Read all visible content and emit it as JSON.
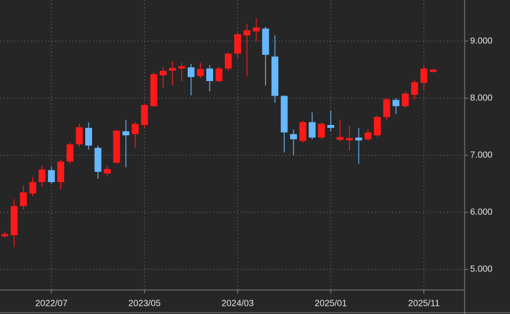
{
  "chart_data": {
    "type": "candlestick",
    "categories": [
      null,
      null,
      null,
      null,
      null,
      "2022/07",
      null,
      null,
      null,
      null,
      null,
      null,
      null,
      null,
      null,
      "2023/05",
      null,
      null,
      null,
      null,
      null,
      null,
      null,
      null,
      null,
      "2024/03",
      null,
      null,
      null,
      null,
      null,
      null,
      null,
      null,
      null,
      "2025/01",
      null,
      null,
      null,
      null,
      null,
      null,
      null,
      null,
      null,
      "2025/11",
      null
    ],
    "series": [
      {
        "open": [
          5.58,
          5.6,
          6.11,
          6.33,
          6.53,
          6.74,
          6.53,
          6.89,
          7.19,
          7.48,
          7.13,
          6.68,
          6.87,
          7.42,
          7.37,
          7.53,
          7.86,
          8.4,
          8.48,
          8.52,
          8.54,
          8.39,
          8.52,
          8.3,
          8.52,
          8.78,
          9.1,
          9.17,
          9.22,
          8.73,
          8.04,
          7.37,
          7.25,
          7.58,
          7.31,
          7.53,
          7.27,
          7.26,
          7.31,
          7.28,
          7.35,
          7.67,
          7.97,
          7.86,
          8.06,
          8.27,
          8.46
        ],
        "high": [
          5.66,
          6.23,
          6.47,
          6.62,
          6.82,
          6.8,
          6.92,
          7.22,
          7.55,
          7.58,
          7.17,
          6.82,
          7.45,
          7.62,
          7.58,
          7.9,
          8.45,
          8.55,
          8.65,
          8.62,
          8.6,
          8.62,
          8.58,
          8.55,
          8.8,
          9.15,
          9.3,
          9.4,
          9.25,
          9.1,
          8.05,
          7.45,
          7.6,
          7.75,
          7.58,
          7.78,
          7.62,
          7.52,
          7.48,
          7.45,
          7.7,
          8.0,
          8.0,
          8.12,
          8.32,
          8.58,
          8.52
        ],
        "low": [
          5.55,
          5.39,
          6.05,
          6.28,
          6.45,
          6.5,
          6.4,
          6.85,
          7.15,
          7.1,
          6.59,
          6.63,
          6.85,
          6.79,
          7.12,
          7.48,
          7.85,
          8.18,
          8.22,
          8.3,
          8.05,
          8.35,
          8.12,
          8.28,
          8.48,
          8.7,
          8.38,
          9.0,
          8.22,
          7.92,
          7.05,
          7.0,
          7.22,
          7.28,
          7.28,
          7.42,
          7.25,
          7.08,
          6.85,
          7.25,
          7.32,
          7.62,
          7.72,
          7.84,
          7.98,
          8.15,
          8.45
        ],
        "close": [
          5.62,
          6.11,
          6.35,
          6.53,
          6.75,
          6.53,
          6.89,
          7.19,
          7.49,
          7.17,
          6.71,
          6.76,
          7.43,
          7.35,
          7.55,
          7.88,
          8.42,
          8.48,
          8.53,
          8.56,
          8.37,
          8.51,
          8.3,
          8.52,
          8.78,
          9.12,
          9.19,
          9.24,
          8.76,
          8.04,
          7.4,
          7.28,
          7.58,
          7.31,
          7.55,
          7.48,
          7.32,
          7.3,
          7.26,
          7.4,
          7.67,
          7.98,
          7.86,
          8.08,
          8.28,
          8.52,
          8.5
        ]
      }
    ],
    "up_color": "#ff1a1a",
    "down_color": "#66b8ff",
    "ylim": [
      4.64,
      9.66
    ],
    "yticks": [
      {
        "value": 5,
        "label": "5.000"
      },
      {
        "value": 6,
        "label": "6.000"
      },
      {
        "value": 7,
        "label": "7.000"
      },
      {
        "value": 8,
        "label": "8.000"
      },
      {
        "value": 9,
        "label": "9.000"
      }
    ],
    "grid": true
  }
}
